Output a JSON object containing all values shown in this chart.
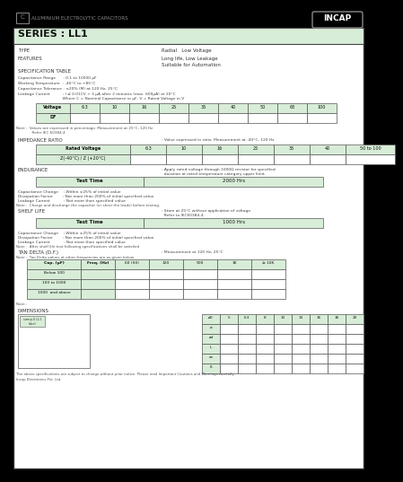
{
  "bg_color": "#f5f5f5",
  "page_bg": "#ffffff",
  "table_bg": "#d8edd8",
  "border_color": "#333333",
  "top_bg": "#111111",
  "series_bg": "#d8edd8",
  "title": "SERIES : LL1",
  "top_label": "ALUMINIUM ELECTROLYTIC CAPACITORS",
  "brand": "INCAP",
  "type_label": "TYPE",
  "type_value": "Radial   Low Voltage",
  "features_label": "FEATURES",
  "features_value1": "Long life, Low Leakage",
  "features_value2": "Suitable for Automation",
  "spec_label": "SPECIFICATION TABLE",
  "cap_range": "Capacitance Range      : 0.1 to 10000 µF",
  "work_temp": "Working Temperature  : -40°C to +85°C",
  "cap_tol": "Capacitance Tolerance : ±20% (M) at 120 Hz, 25°C",
  "leak_curr1": "Leakage Current          : I ≤ 0.01CV + 3 µA after 2 minutes (max. 600µA) at 20°C",
  "leak_curr2": "                                    Where C = Nominal Capacitance in µF, V = Rated Voltage in V",
  "voltage_row": [
    "Voltage",
    "6.3",
    "10",
    "16",
    "25",
    "35",
    "40",
    "50",
    "63",
    "100"
  ],
  "df_row": [
    "DF",
    "",
    "",
    "",
    "",
    "",
    "",
    "",
    "",
    ""
  ],
  "note_df": "Note :  Values are expressed in percentage. Measurement at 25°C, 120 Hz",
  "note_df2": "              Refer IEC 60384-4",
  "imp_label": "IMPEDANCE RATIO",
  "imp_text": ": Value expressed in ratio. Measurement at -40°C, 120 Hz",
  "rated_voltage_row": [
    "Rated Voltage",
    "6.3",
    "10",
    "16",
    "25",
    "35",
    "40",
    "50 to 100"
  ],
  "z_row": [
    "Z(-40°C) / Z (+20°C)",
    "",
    "",
    "",
    "",
    "",
    "",
    ""
  ],
  "endurance_label": "ENDURANCE",
  "endurance_text1": ": Apply rated voltage through 1000Ω resistor for specified",
  "endurance_text2": "  duration at rated temperature category upper limit.",
  "test_time_label": "Test Time",
  "test_2000": "2000 Hrs",
  "end_spec1": "Capacitance Change    : Within ±25% of initial value",
  "end_spec2": "Dissipation Factor        : Not more than 200% of initial specified value",
  "end_spec3": "Leakage Current           : Not more than specified value",
  "note_end": "Note :  Charge and discharge the capacitor (or short the leads) before testing.",
  "shelf_label": "SHELF LIFE",
  "shelf_text1": ": Store at 25°C without application of voltage.",
  "shelf_text2": "  Refer to IEC60384-4.",
  "test_1000": "1000 Hrs",
  "shelf_spec1": "Capacitance Change    : Within ±25% of initial value",
  "shelf_spec2": "Dissipation Factor        : Not more than 200% of initial specified value",
  "shelf_spec3": "Leakage Current           : Not more than specified value",
  "note_shelf": "Note :  After shelf life test following specifications shall be satisfied",
  "tan_label": "TAN DELTA (D.F.)",
  "tan_text": ": Measurement at 120 Hz, 25°C",
  "freq_note": "Note :  Tan Delta values at other frequencies are as given below",
  "freq_headers": [
    "Cap. (µF)",
    "Freq. (Hz)",
    "60 (50)",
    "120",
    "500",
    "1K",
    "≥ 10K"
  ],
  "freq_rows": [
    [
      "Below 100",
      ""
    ],
    [
      "100 to 1000",
      ""
    ],
    [
      "1000  and above",
      ""
    ]
  ],
  "note_tan": "Note :",
  "dim_label": "DIMENSIONS",
  "final_note": "The above specifications are subject to change without prior notice. Please read Important Cautions and Warnings carefully.",
  "company": "Incap Electronics Pvt. Ltd.",
  "dim_headers": [
    "øD",
    "5",
    "6.3",
    "8",
    "10",
    "13",
    "16",
    "18",
    "20"
  ],
  "dim_rows": [
    "ø",
    "ød",
    "L",
    "æ",
    "ß"
  ]
}
